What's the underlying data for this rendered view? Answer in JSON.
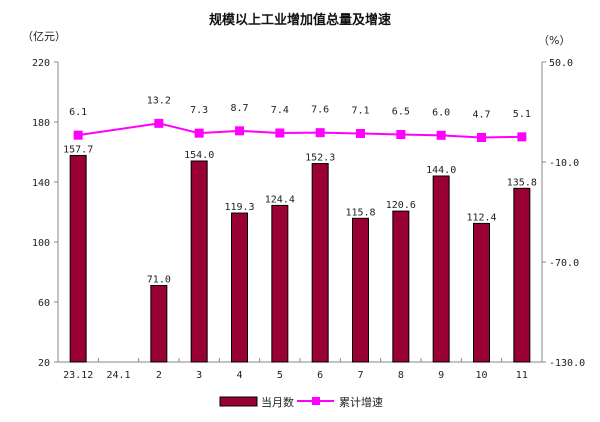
{
  "chart_data": {
    "type": "bar+line",
    "title": "规模以上工业增加值总量及增速",
    "ylabel_left": "（亿元）",
    "ylabel_right": "（%）",
    "categories": [
      "23.12",
      "24.1",
      "2",
      "3",
      "4",
      "5",
      "6",
      "7",
      "8",
      "9",
      "10",
      "11"
    ],
    "left_axis": {
      "range": [
        20,
        220
      ],
      "ticks": [
        "20",
        "60",
        "100",
        "140",
        "180",
        "220"
      ]
    },
    "right_axis": {
      "range": [
        -130,
        50
      ],
      "ticks": [
        "-130.0",
        "-70.0",
        "-10.0",
        "50.0"
      ]
    },
    "grid": false,
    "legend_position": "bottom",
    "series": [
      {
        "name": "当月数",
        "type": "bar",
        "color": "#990033",
        "values": [
          157.7,
          null,
          71.0,
          154.0,
          119.3,
          124.4,
          152.3,
          115.8,
          120.6,
          144.0,
          112.4,
          135.8
        ],
        "labels": [
          "157.7",
          "",
          "71.0",
          "154.0",
          "119.3",
          "124.4",
          "152.3",
          "115.8",
          "120.6",
          "144.0",
          "112.4",
          "135.8"
        ]
      },
      {
        "name": "累计增速",
        "type": "line",
        "axis": "right",
        "color": "#FF00FF",
        "values": [
          6.1,
          null,
          13.2,
          7.3,
          8.7,
          7.4,
          7.6,
          7.1,
          6.5,
          6.0,
          4.7,
          5.1
        ],
        "labels": [
          "6.1",
          "",
          "13.2",
          "7.3",
          "8.7",
          "7.4",
          "7.6",
          "7.1",
          "6.5",
          "6.0",
          "4.7",
          "5.1"
        ]
      }
    ]
  }
}
